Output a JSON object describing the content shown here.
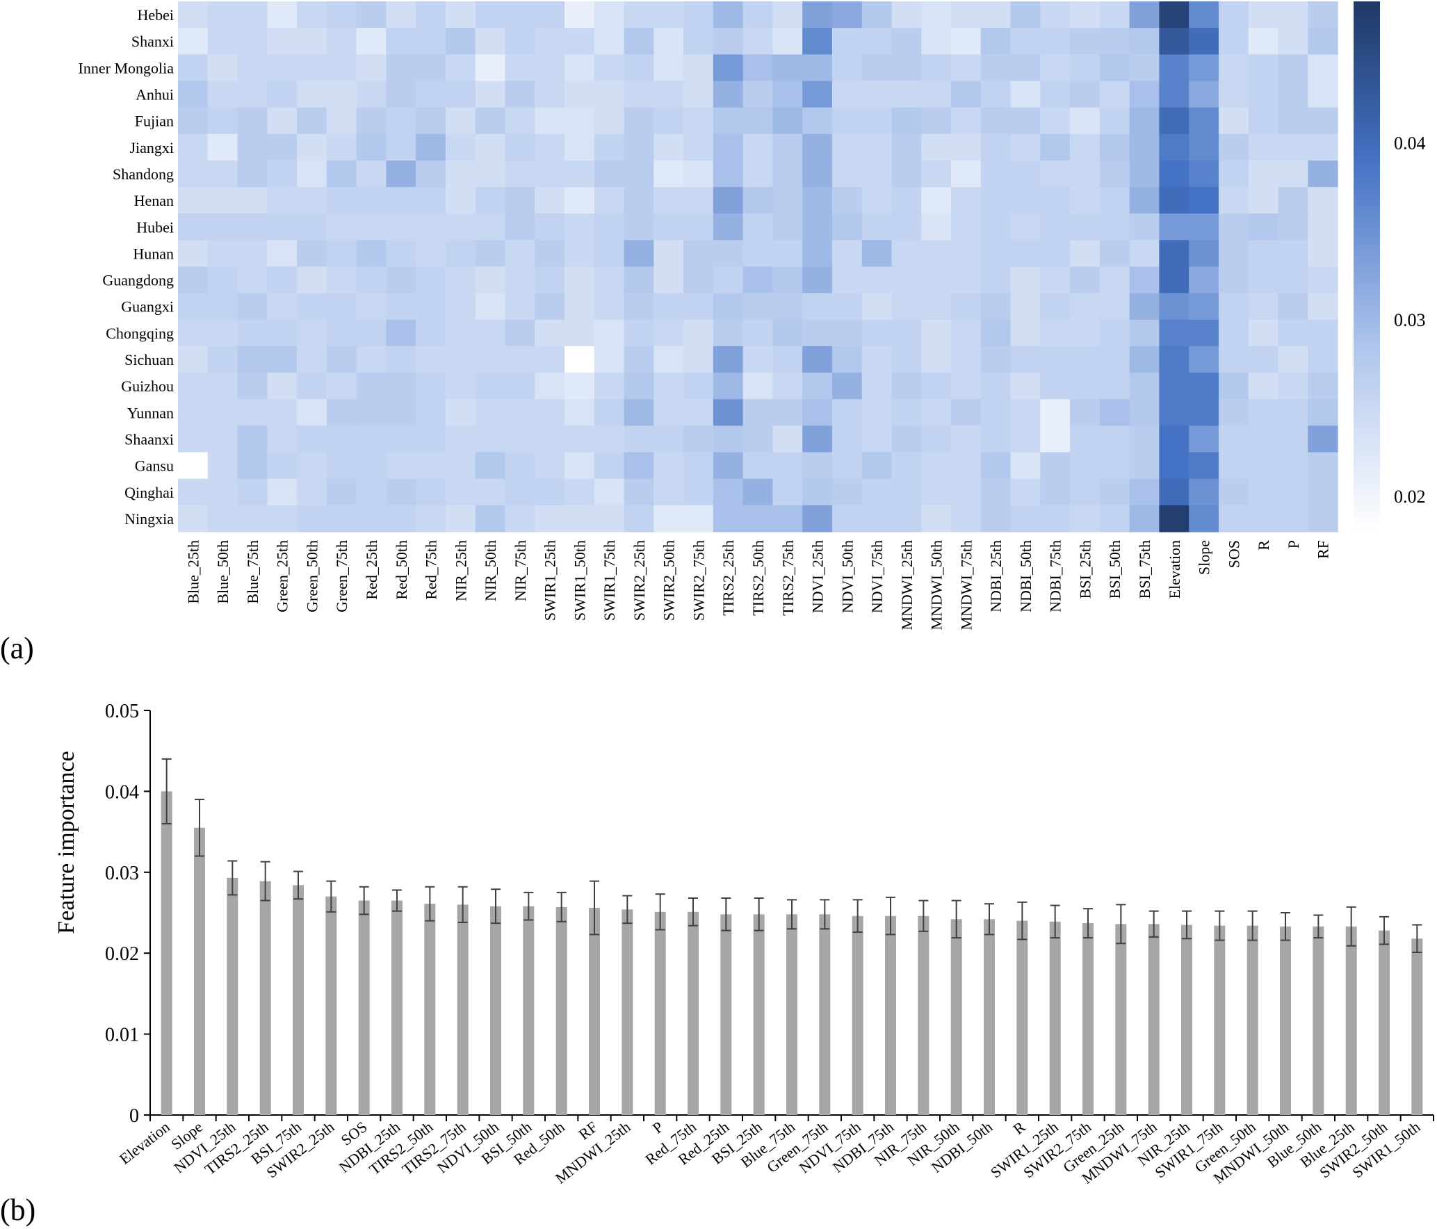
{
  "panel_labels": {
    "a": "(a)",
    "b": "(b)"
  },
  "colors": {
    "low": "#ffffff",
    "mid": "#aec5ec",
    "high": "#4472c4",
    "max": "#1f3864",
    "bar": "#a6a6a6",
    "error": "#404040"
  },
  "chart_data": [
    {
      "type": "heatmap",
      "rows": [
        "Hebei",
        "Shanxi",
        "Inner Mongolia",
        "Anhui",
        "Fujian",
        "Jiangxi",
        "Shandong",
        "Henan",
        "Hubei",
        "Hunan",
        "Guangdong",
        "Guangxi",
        "Chongqing",
        "Sichuan",
        "Guizhou",
        "Yunnan",
        "Shaanxi",
        "Gansu",
        "Qinghai",
        "Ningxia"
      ],
      "columns": [
        "Blue_25th",
        "Blue_50th",
        "Blue_75th",
        "Green_25th",
        "Green_50th",
        "Green_75th",
        "Red_25th",
        "Red_50th",
        "Red_75th",
        "NIR_25th",
        "NIR_50th",
        "NIR_75th",
        "SWIR1_25th",
        "SWIR1_50th",
        "SWIR1_75th",
        "SWIR2_25th",
        "SWIR2_50th",
        "SWIR2_75th",
        "TIRS2_25th",
        "TIRS2_50th",
        "TIRS2_75th",
        "NDVI_25th",
        "NDVI_50th",
        "NDVI_75th",
        "MNDWI_25th",
        "MNDWI_50th",
        "MNDWI_75th",
        "NDBI_25th",
        "NDBI_50th",
        "NDBI_75th",
        "BSI_25th",
        "BSI_50th",
        "BSI_75th",
        "Elevation",
        "Slope",
        "SOS",
        "R",
        "P",
        "RF"
      ],
      "values": [
        [
          0.024,
          0.025,
          0.025,
          0.022,
          0.025,
          0.026,
          0.027,
          0.024,
          0.026,
          0.024,
          0.026,
          0.026,
          0.026,
          0.021,
          0.023,
          0.025,
          0.025,
          0.026,
          0.03,
          0.026,
          0.024,
          0.033,
          0.032,
          0.028,
          0.024,
          0.023,
          0.024,
          0.024,
          0.028,
          0.025,
          0.024,
          0.025,
          0.033,
          0.046,
          0.036,
          0.026,
          0.024,
          0.024,
          0.027
        ],
        [
          0.022,
          0.025,
          0.025,
          0.024,
          0.024,
          0.025,
          0.022,
          0.026,
          0.026,
          0.028,
          0.024,
          0.026,
          0.025,
          0.025,
          0.023,
          0.028,
          0.023,
          0.026,
          0.027,
          0.025,
          0.023,
          0.036,
          0.026,
          0.026,
          0.027,
          0.023,
          0.022,
          0.028,
          0.026,
          0.026,
          0.027,
          0.027,
          0.028,
          0.043,
          0.04,
          0.026,
          0.022,
          0.024,
          0.028
        ],
        [
          0.026,
          0.024,
          0.025,
          0.025,
          0.025,
          0.025,
          0.024,
          0.027,
          0.027,
          0.025,
          0.021,
          0.025,
          0.025,
          0.023,
          0.025,
          0.026,
          0.023,
          0.024,
          0.034,
          0.029,
          0.03,
          0.03,
          0.026,
          0.027,
          0.027,
          0.026,
          0.025,
          0.027,
          0.027,
          0.025,
          0.026,
          0.028,
          0.027,
          0.037,
          0.034,
          0.025,
          0.026,
          0.027,
          0.023
        ],
        [
          0.028,
          0.025,
          0.025,
          0.026,
          0.024,
          0.024,
          0.025,
          0.027,
          0.026,
          0.026,
          0.024,
          0.027,
          0.025,
          0.024,
          0.024,
          0.025,
          0.025,
          0.024,
          0.031,
          0.027,
          0.029,
          0.034,
          0.025,
          0.025,
          0.025,
          0.025,
          0.028,
          0.026,
          0.023,
          0.026,
          0.027,
          0.025,
          0.029,
          0.037,
          0.032,
          0.025,
          0.026,
          0.027,
          0.023
        ],
        [
          0.027,
          0.026,
          0.027,
          0.024,
          0.027,
          0.024,
          0.027,
          0.026,
          0.027,
          0.024,
          0.027,
          0.025,
          0.023,
          0.023,
          0.024,
          0.027,
          0.026,
          0.025,
          0.028,
          0.028,
          0.03,
          0.028,
          0.026,
          0.026,
          0.028,
          0.027,
          0.025,
          0.027,
          0.027,
          0.025,
          0.023,
          0.026,
          0.03,
          0.04,
          0.036,
          0.024,
          0.026,
          0.027,
          0.027
        ],
        [
          0.025,
          0.022,
          0.027,
          0.027,
          0.024,
          0.025,
          0.028,
          0.026,
          0.03,
          0.025,
          0.024,
          0.026,
          0.025,
          0.023,
          0.026,
          0.027,
          0.024,
          0.025,
          0.029,
          0.025,
          0.027,
          0.031,
          0.025,
          0.025,
          0.027,
          0.024,
          0.024,
          0.026,
          0.025,
          0.028,
          0.025,
          0.028,
          0.03,
          0.038,
          0.036,
          0.027,
          0.025,
          0.025,
          0.025
        ],
        [
          0.025,
          0.025,
          0.027,
          0.026,
          0.023,
          0.028,
          0.025,
          0.031,
          0.027,
          0.024,
          0.024,
          0.025,
          0.025,
          0.025,
          0.027,
          0.027,
          0.022,
          0.023,
          0.029,
          0.025,
          0.027,
          0.031,
          0.025,
          0.025,
          0.027,
          0.025,
          0.022,
          0.026,
          0.026,
          0.025,
          0.025,
          0.027,
          0.03,
          0.039,
          0.037,
          0.026,
          0.024,
          0.024,
          0.031
        ],
        [
          0.024,
          0.024,
          0.024,
          0.025,
          0.025,
          0.026,
          0.026,
          0.026,
          0.026,
          0.024,
          0.026,
          0.027,
          0.024,
          0.022,
          0.025,
          0.027,
          0.025,
          0.025,
          0.033,
          0.028,
          0.027,
          0.03,
          0.027,
          0.025,
          0.026,
          0.022,
          0.025,
          0.026,
          0.026,
          0.026,
          0.025,
          0.026,
          0.031,
          0.04,
          0.039,
          0.025,
          0.024,
          0.027,
          0.024
        ],
        [
          0.026,
          0.026,
          0.026,
          0.026,
          0.026,
          0.025,
          0.025,
          0.025,
          0.025,
          0.025,
          0.025,
          0.027,
          0.026,
          0.025,
          0.026,
          0.027,
          0.026,
          0.026,
          0.031,
          0.026,
          0.027,
          0.03,
          0.028,
          0.026,
          0.026,
          0.023,
          0.025,
          0.026,
          0.025,
          0.026,
          0.026,
          0.026,
          0.027,
          0.034,
          0.034,
          0.027,
          0.028,
          0.027,
          0.024
        ],
        [
          0.024,
          0.025,
          0.025,
          0.023,
          0.027,
          0.026,
          0.028,
          0.026,
          0.025,
          0.026,
          0.027,
          0.025,
          0.027,
          0.025,
          0.026,
          0.031,
          0.024,
          0.027,
          0.027,
          0.026,
          0.026,
          0.03,
          0.025,
          0.03,
          0.025,
          0.025,
          0.025,
          0.026,
          0.026,
          0.026,
          0.024,
          0.027,
          0.025,
          0.04,
          0.035,
          0.027,
          0.026,
          0.026,
          0.024
        ],
        [
          0.027,
          0.026,
          0.025,
          0.026,
          0.024,
          0.025,
          0.026,
          0.027,
          0.026,
          0.025,
          0.024,
          0.025,
          0.026,
          0.024,
          0.025,
          0.028,
          0.024,
          0.027,
          0.026,
          0.029,
          0.028,
          0.031,
          0.025,
          0.025,
          0.025,
          0.025,
          0.025,
          0.026,
          0.024,
          0.025,
          0.027,
          0.025,
          0.029,
          0.04,
          0.032,
          0.027,
          0.026,
          0.026,
          0.025
        ],
        [
          0.026,
          0.026,
          0.027,
          0.025,
          0.026,
          0.026,
          0.025,
          0.026,
          0.026,
          0.025,
          0.023,
          0.025,
          0.027,
          0.024,
          0.025,
          0.027,
          0.026,
          0.026,
          0.028,
          0.027,
          0.027,
          0.026,
          0.026,
          0.024,
          0.025,
          0.025,
          0.026,
          0.027,
          0.024,
          0.026,
          0.025,
          0.025,
          0.031,
          0.035,
          0.034,
          0.026,
          0.025,
          0.027,
          0.024
        ],
        [
          0.025,
          0.025,
          0.026,
          0.026,
          0.025,
          0.026,
          0.026,
          0.029,
          0.026,
          0.025,
          0.025,
          0.027,
          0.024,
          0.024,
          0.023,
          0.026,
          0.025,
          0.024,
          0.027,
          0.026,
          0.028,
          0.027,
          0.027,
          0.026,
          0.026,
          0.024,
          0.025,
          0.028,
          0.024,
          0.025,
          0.025,
          0.026,
          0.028,
          0.037,
          0.037,
          0.026,
          0.024,
          0.026,
          0.026
        ],
        [
          0.024,
          0.026,
          0.028,
          0.028,
          0.025,
          0.027,
          0.025,
          0.026,
          0.025,
          0.025,
          0.025,
          0.025,
          0.025,
          0.018,
          0.023,
          0.027,
          0.023,
          0.024,
          0.033,
          0.025,
          0.026,
          0.033,
          0.028,
          0.025,
          0.026,
          0.024,
          0.025,
          0.027,
          0.026,
          0.026,
          0.026,
          0.026,
          0.03,
          0.038,
          0.034,
          0.026,
          0.026,
          0.024,
          0.026
        ],
        [
          0.025,
          0.025,
          0.027,
          0.024,
          0.026,
          0.025,
          0.027,
          0.027,
          0.026,
          0.025,
          0.026,
          0.026,
          0.023,
          0.022,
          0.025,
          0.028,
          0.025,
          0.026,
          0.03,
          0.023,
          0.025,
          0.028,
          0.031,
          0.025,
          0.027,
          0.026,
          0.025,
          0.026,
          0.024,
          0.026,
          0.026,
          0.026,
          0.028,
          0.038,
          0.038,
          0.028,
          0.024,
          0.025,
          0.027
        ],
        [
          0.025,
          0.025,
          0.025,
          0.025,
          0.023,
          0.027,
          0.027,
          0.027,
          0.026,
          0.024,
          0.025,
          0.025,
          0.025,
          0.023,
          0.026,
          0.03,
          0.025,
          0.025,
          0.035,
          0.027,
          0.027,
          0.029,
          0.026,
          0.025,
          0.026,
          0.025,
          0.027,
          0.026,
          0.025,
          0.021,
          0.027,
          0.029,
          0.028,
          0.038,
          0.038,
          0.027,
          0.026,
          0.026,
          0.028
        ],
        [
          0.025,
          0.025,
          0.028,
          0.025,
          0.026,
          0.026,
          0.026,
          0.026,
          0.026,
          0.025,
          0.025,
          0.025,
          0.025,
          0.025,
          0.025,
          0.026,
          0.026,
          0.027,
          0.028,
          0.027,
          0.024,
          0.033,
          0.026,
          0.025,
          0.027,
          0.026,
          0.025,
          0.026,
          0.025,
          0.021,
          0.026,
          0.026,
          0.027,
          0.039,
          0.034,
          0.026,
          0.026,
          0.026,
          0.033
        ],
        [
          0.018,
          0.025,
          0.028,
          0.026,
          0.025,
          0.026,
          0.026,
          0.025,
          0.025,
          0.025,
          0.028,
          0.026,
          0.025,
          0.023,
          0.026,
          0.029,
          0.025,
          0.026,
          0.031,
          0.026,
          0.026,
          0.027,
          0.026,
          0.028,
          0.026,
          0.025,
          0.025,
          0.028,
          0.023,
          0.027,
          0.026,
          0.026,
          0.027,
          0.039,
          0.038,
          0.026,
          0.026,
          0.026,
          0.027
        ],
        [
          0.025,
          0.025,
          0.026,
          0.023,
          0.025,
          0.027,
          0.026,
          0.027,
          0.026,
          0.025,
          0.025,
          0.026,
          0.026,
          0.025,
          0.023,
          0.027,
          0.025,
          0.026,
          0.029,
          0.031,
          0.026,
          0.028,
          0.027,
          0.026,
          0.026,
          0.025,
          0.025,
          0.027,
          0.025,
          0.027,
          0.026,
          0.027,
          0.029,
          0.04,
          0.035,
          0.027,
          0.026,
          0.026,
          0.027
        ],
        [
          0.024,
          0.025,
          0.025,
          0.025,
          0.026,
          0.026,
          0.026,
          0.026,
          0.025,
          0.024,
          0.028,
          0.025,
          0.024,
          0.024,
          0.024,
          0.026,
          0.022,
          0.022,
          0.029,
          0.029,
          0.029,
          0.033,
          0.026,
          0.026,
          0.026,
          0.024,
          0.025,
          0.027,
          0.026,
          0.026,
          0.025,
          0.026,
          0.03,
          0.047,
          0.036,
          0.026,
          0.026,
          0.026,
          0.027
        ]
      ],
      "colorbar": {
        "min": 0.018,
        "max": 0.048,
        "ticks": [
          0.02,
          0.03,
          0.04
        ],
        "tick_labels": [
          "0.02",
          "0.03",
          "0.04"
        ]
      }
    },
    {
      "type": "bar",
      "ylabel": "Feature importance",
      "ylim": [
        0,
        0.05
      ],
      "yticks": [
        0,
        0.01,
        0.02,
        0.03,
        0.04,
        0.05
      ],
      "ytick_labels": [
        "0",
        "0.01",
        "0.02",
        "0.03",
        "0.04",
        "0.05"
      ],
      "categories": [
        "Elevation",
        "Slope",
        "NDVI_25th",
        "TIRS2_25th",
        "BSI_75th",
        "SWIR2_25th",
        "SOS",
        "NDBI_25th",
        "TIRS2_50th",
        "TIRS2_75th",
        "NDVI_50th",
        "BSI_50th",
        "Red_50th",
        "RF",
        "MNDWI_25th",
        "P",
        "Red_75th",
        "Red_25th",
        "BSI_25th",
        "Blue_75th",
        "Green_75th",
        "NDVI_75th",
        "NDBI_75th",
        "NIR_75th",
        "NIR_50th",
        "NDBI_50th",
        "R",
        "SWIR1_25th",
        "SWIR2_75th",
        "Green_25th",
        "MNDWI_75th",
        "NIR_25th",
        "SWIR1_75th",
        "Green_50th",
        "MNDWI_50th",
        "Blue_50th",
        "Blue_25th",
        "SWIR2_50th",
        "SWIR1_50th"
      ],
      "values": [
        0.04,
        0.0355,
        0.0293,
        0.0289,
        0.0284,
        0.027,
        0.0265,
        0.0265,
        0.0261,
        0.026,
        0.0258,
        0.0258,
        0.0257,
        0.0256,
        0.0254,
        0.0251,
        0.0251,
        0.0248,
        0.0248,
        0.0248,
        0.0248,
        0.0246,
        0.0246,
        0.0246,
        0.0242,
        0.0242,
        0.024,
        0.0239,
        0.0237,
        0.0236,
        0.0236,
        0.0235,
        0.0234,
        0.0234,
        0.0233,
        0.0233,
        0.0233,
        0.0228,
        0.0218
      ],
      "errors": [
        0.004,
        0.0035,
        0.0021,
        0.0024,
        0.0017,
        0.0019,
        0.0017,
        0.0013,
        0.0021,
        0.0022,
        0.0021,
        0.0017,
        0.0018,
        0.0033,
        0.0017,
        0.0022,
        0.0017,
        0.002,
        0.002,
        0.0018,
        0.0018,
        0.002,
        0.0023,
        0.0019,
        0.0023,
        0.0019,
        0.0023,
        0.002,
        0.0018,
        0.0024,
        0.0016,
        0.0017,
        0.0018,
        0.0018,
        0.0017,
        0.0014,
        0.0024,
        0.0017,
        0.0017
      ]
    }
  ]
}
